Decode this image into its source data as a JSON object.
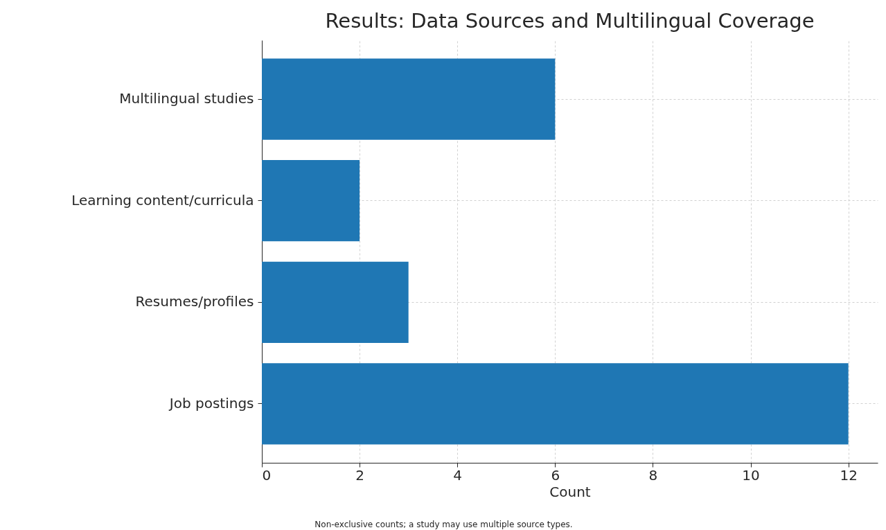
{
  "chart_data": {
    "type": "bar",
    "orientation": "horizontal",
    "title": "Results: Data Sources and Multilingual Coverage",
    "xlabel": "Count",
    "categories": [
      "Multilingual studies",
      "Learning content/curricula",
      "Resumes/profiles",
      "Job postings"
    ],
    "values": [
      6,
      2,
      3,
      12
    ],
    "color": "#1f77b4",
    "xlim": [
      0,
      12.6
    ],
    "xticks": [
      0,
      2,
      4,
      6,
      8,
      10,
      12
    ],
    "grid": true,
    "annotations": [
      "Non-exclusive counts; a study may use multiple source types."
    ]
  }
}
